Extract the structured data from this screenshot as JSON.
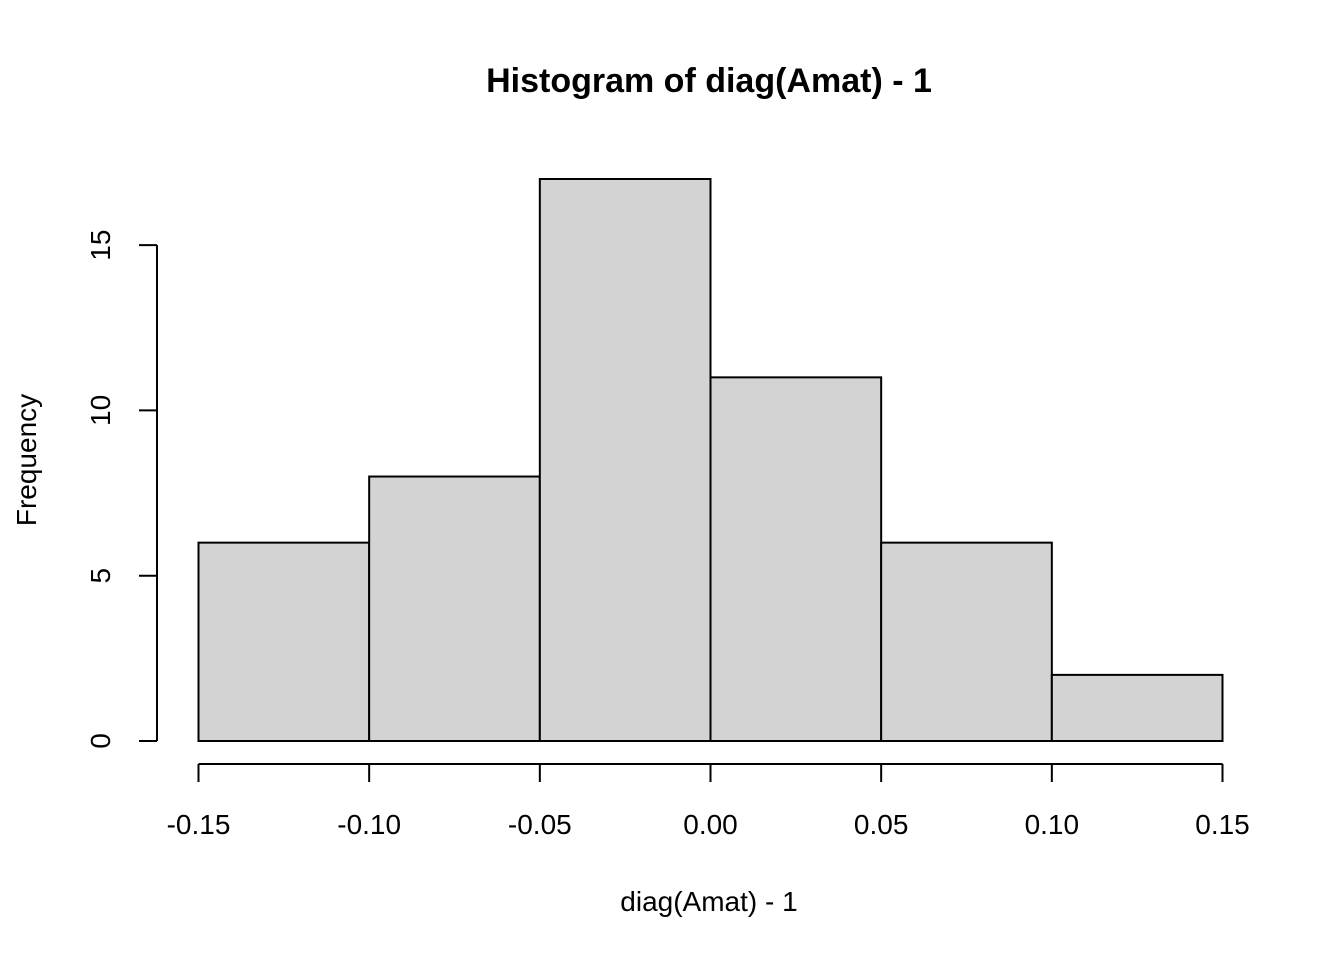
{
  "chart_data": {
    "type": "bar",
    "title": "Histogram of diag(Amat) - 1",
    "xlabel": "diag(Amat) - 1",
    "ylabel": "Frequency",
    "bins": [
      {
        "start": -0.15,
        "end": -0.1,
        "count": 6
      },
      {
        "start": -0.1,
        "end": -0.05,
        "count": 8
      },
      {
        "start": -0.05,
        "end": 0.0,
        "count": 17
      },
      {
        "start": 0.0,
        "end": 0.05,
        "count": 11
      },
      {
        "start": 0.05,
        "end": 0.1,
        "count": 6
      },
      {
        "start": 0.1,
        "end": 0.15,
        "count": 2
      }
    ],
    "xlim": [
      -0.15,
      0.15
    ],
    "ylim": [
      0,
      17
    ],
    "x_ticks": [
      {
        "value": -0.15,
        "label": "-0.15"
      },
      {
        "value": -0.1,
        "label": "-0.10"
      },
      {
        "value": -0.05,
        "label": "-0.05"
      },
      {
        "value": 0.0,
        "label": "0.00"
      },
      {
        "value": 0.05,
        "label": "0.05"
      },
      {
        "value": 0.1,
        "label": "0.10"
      },
      {
        "value": 0.15,
        "label": "0.15"
      }
    ],
    "y_ticks": [
      {
        "value": 0,
        "label": "0"
      },
      {
        "value": 5,
        "label": "5"
      },
      {
        "value": 10,
        "label": "10"
      },
      {
        "value": 15,
        "label": "15"
      }
    ],
    "bar_color": "#d3d3d3",
    "grid": false
  }
}
